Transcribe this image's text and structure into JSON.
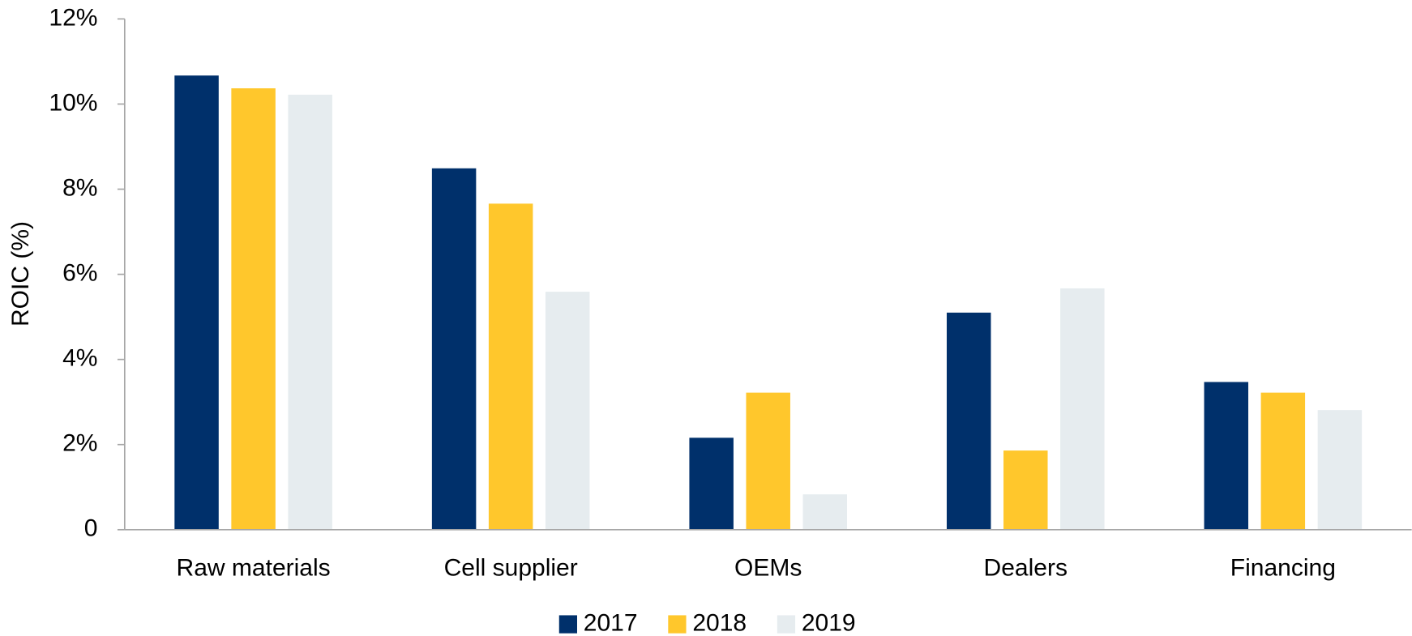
{
  "chart_data": {
    "type": "bar",
    "y_label": "ROIC (%)",
    "categories": [
      "Raw materials",
      "Cell supplier",
      "OEMs",
      "Dealers",
      "Financing"
    ],
    "series": [
      {
        "name": "2017",
        "color": "#00306b",
        "values": [
          10.67,
          8.49,
          2.16,
          5.1,
          3.47
        ]
      },
      {
        "name": "2018",
        "color": "#ffc72c",
        "values": [
          10.37,
          7.66,
          3.22,
          1.86,
          3.22
        ]
      },
      {
        "name": "2019",
        "color": "#e6ecef",
        "values": [
          10.22,
          5.59,
          0.83,
          5.67,
          2.81
        ]
      }
    ],
    "ylim": [
      0,
      12
    ],
    "yticks": [
      0,
      {
        "value": 2,
        "label": "2%"
      },
      {
        "value": 4,
        "label": "4%"
      },
      {
        "value": 6,
        "label": "6%"
      },
      {
        "value": 8,
        "label": "8%"
      },
      {
        "value": 10,
        "label": "10%"
      },
      {
        "value": 12,
        "label": "12%"
      }
    ],
    "grid": false,
    "legend": "bottom"
  }
}
